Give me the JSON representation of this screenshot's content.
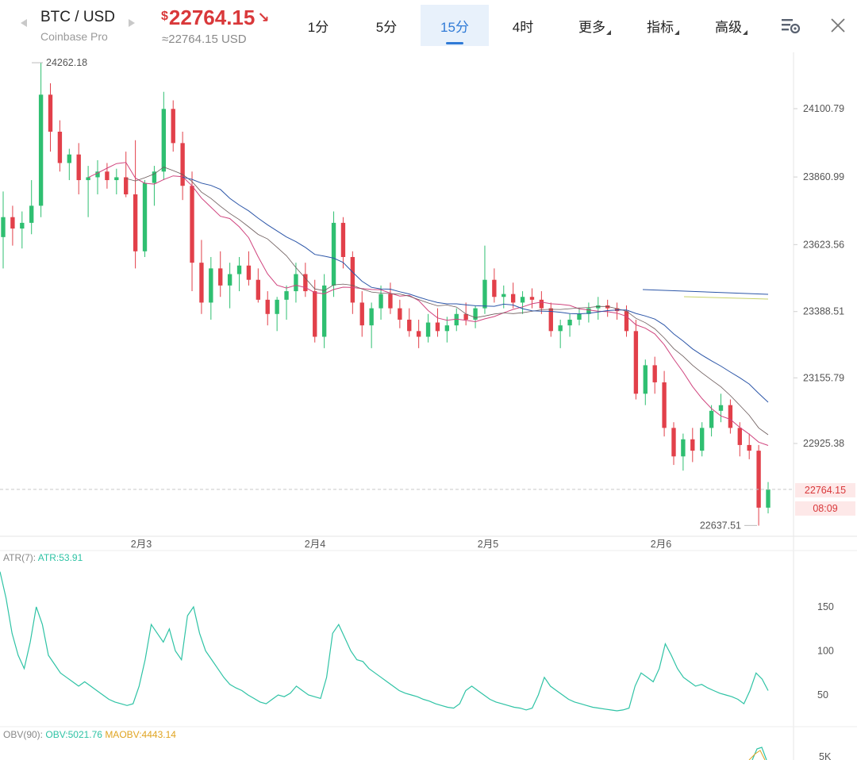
{
  "header": {
    "pair": "BTC / USD",
    "exchange": "Coinbase Pro",
    "price_currency": "$",
    "price": "22764.15",
    "price_trend_icon": "arrow-down-right-icon",
    "price_converted": "≈22764.15 USD",
    "tabs": [
      {
        "label": "1分",
        "active": false,
        "dropdown": false
      },
      {
        "label": "5分",
        "active": false,
        "dropdown": false
      },
      {
        "label": "15分",
        "active": true,
        "dropdown": false
      },
      {
        "label": "4时",
        "active": false,
        "dropdown": false
      },
      {
        "label": "更多",
        "active": false,
        "dropdown": true
      },
      {
        "label": "指标",
        "active": false,
        "dropdown": true
      },
      {
        "label": "高级",
        "active": false,
        "dropdown": true
      }
    ],
    "settings_icon": "chart-settings-icon",
    "close_icon": "close-icon"
  },
  "colors": {
    "up": "#2fbf71",
    "down": "#e2404a",
    "accent": "#2f7ad6",
    "price_red": "#d9383a",
    "ma_pink": "#d0447e",
    "ma_blue": "#2c56a8",
    "ma_dark": "#6b5a5a",
    "ma_yellow": "#c8d36a",
    "indicator_teal": "#2fc3a5",
    "indicator_orange": "#e0a421"
  },
  "main_chart": {
    "y_axis_labels": [
      "24100.79",
      "23860.99",
      "23623.56",
      "23388.51",
      "23155.79",
      "22925.38"
    ],
    "x_axis_labels": [
      "2月3",
      "2月4",
      "2月5",
      "2月6"
    ],
    "high_label": "24262.18",
    "low_label": "22637.51",
    "current_price_tag": "22764.15",
    "countdown_tag": "08:09",
    "candles": [
      [
        23650,
        23810,
        23540,
        23720
      ],
      [
        23720,
        23760,
        23620,
        23680
      ],
      [
        23680,
        23740,
        23610,
        23700
      ],
      [
        23700,
        23850,
        23660,
        23760
      ],
      [
        23760,
        24262,
        23720,
        24150
      ],
      [
        24150,
        24190,
        23950,
        24020
      ],
      [
        24020,
        24060,
        23880,
        23910
      ],
      [
        23910,
        23960,
        23850,
        23940
      ],
      [
        23940,
        23980,
        23800,
        23850
      ],
      [
        23850,
        23900,
        23720,
        23860
      ],
      [
        23860,
        23920,
        23800,
        23880
      ],
      [
        23880,
        23910,
        23820,
        23850
      ],
      [
        23850,
        23890,
        23800,
        23860
      ],
      [
        23860,
        23950,
        23790,
        23800
      ],
      [
        23800,
        23990,
        23540,
        23600
      ],
      [
        23600,
        23850,
        23580,
        23840
      ],
      [
        23840,
        23900,
        23760,
        23880
      ],
      [
        23880,
        24160,
        23850,
        24100
      ],
      [
        24100,
        24130,
        23950,
        23980
      ],
      [
        23980,
        24020,
        23780,
        23830
      ],
      [
        23830,
        23880,
        23460,
        23560
      ],
      [
        23560,
        23640,
        23380,
        23420
      ],
      [
        23420,
        23580,
        23360,
        23540
      ],
      [
        23540,
        23600,
        23440,
        23480
      ],
      [
        23480,
        23560,
        23400,
        23520
      ],
      [
        23520,
        23580,
        23460,
        23550
      ],
      [
        23550,
        23600,
        23480,
        23500
      ],
      [
        23500,
        23540,
        23420,
        23430
      ],
      [
        23430,
        23460,
        23340,
        23380
      ],
      [
        23380,
        23440,
        23320,
        23430
      ],
      [
        23430,
        23480,
        23360,
        23460
      ],
      [
        23460,
        23560,
        23420,
        23520
      ],
      [
        23520,
        23560,
        23440,
        23460
      ],
      [
        23460,
        23500,
        23280,
        23300
      ],
      [
        23300,
        23520,
        23260,
        23480
      ],
      [
        23480,
        23740,
        23440,
        23700
      ],
      [
        23700,
        23720,
        23540,
        23580
      ],
      [
        23580,
        23600,
        23380,
        23420
      ],
      [
        23420,
        23460,
        23300,
        23340
      ],
      [
        23340,
        23420,
        23260,
        23400
      ],
      [
        23400,
        23480,
        23360,
        23450
      ],
      [
        23450,
        23490,
        23380,
        23400
      ],
      [
        23400,
        23430,
        23330,
        23360
      ],
      [
        23360,
        23400,
        23300,
        23320
      ],
      [
        23320,
        23360,
        23260,
        23300
      ],
      [
        23300,
        23380,
        23280,
        23350
      ],
      [
        23350,
        23400,
        23300,
        23320
      ],
      [
        23320,
        23370,
        23280,
        23340
      ],
      [
        23340,
        23400,
        23320,
        23380
      ],
      [
        23380,
        23420,
        23340,
        23360
      ],
      [
        23360,
        23410,
        23330,
        23400
      ],
      [
        23400,
        23620,
        23380,
        23500
      ],
      [
        23500,
        23540,
        23420,
        23440
      ],
      [
        23440,
        23480,
        23400,
        23450
      ],
      [
        23450,
        23490,
        23400,
        23420
      ],
      [
        23420,
        23460,
        23380,
        23440
      ],
      [
        23440,
        23470,
        23400,
        23430
      ],
      [
        23430,
        23460,
        23380,
        23400
      ],
      [
        23400,
        23420,
        23300,
        23320
      ],
      [
        23320,
        23360,
        23260,
        23340
      ],
      [
        23340,
        23380,
        23300,
        23360
      ],
      [
        23360,
        23400,
        23340,
        23380
      ],
      [
        23380,
        23420,
        23350,
        23400
      ],
      [
        23400,
        23440,
        23360,
        23410
      ],
      [
        23410,
        23430,
        23370,
        23400
      ],
      [
        23400,
        23420,
        23360,
        23390
      ],
      [
        23390,
        23410,
        23300,
        23320
      ],
      [
        23320,
        23360,
        23080,
        23100
      ],
      [
        23100,
        23220,
        23060,
        23200
      ],
      [
        23200,
        23230,
        23100,
        23140
      ],
      [
        23140,
        23180,
        22950,
        22980
      ],
      [
        22980,
        23000,
        22850,
        22880
      ],
      [
        22880,
        22960,
        22830,
        22940
      ],
      [
        22940,
        22980,
        22860,
        22900
      ],
      [
        22900,
        23000,
        22880,
        22980
      ],
      [
        22980,
        23060,
        22950,
        23040
      ],
      [
        23040,
        23100,
        23000,
        23060
      ],
      [
        23060,
        23080,
        22960,
        22980
      ],
      [
        22980,
        23000,
        22880,
        22920
      ],
      [
        22920,
        22960,
        22870,
        22900
      ],
      [
        22900,
        22920,
        22637,
        22700
      ],
      [
        22700,
        22790,
        22680,
        22764
      ]
    ]
  },
  "atr_panel": {
    "label": "ATR(7):",
    "value_label": "ATR:53.91",
    "y_axis_labels": [
      "150",
      "100",
      "50"
    ],
    "series": [
      190,
      160,
      120,
      95,
      80,
      110,
      150,
      130,
      95,
      85,
      75,
      70,
      65,
      60,
      65,
      60,
      55,
      50,
      45,
      42,
      40,
      38,
      40,
      60,
      90,
      130,
      120,
      110,
      125,
      100,
      90,
      140,
      150,
      120,
      100,
      90,
      80,
      70,
      62,
      58,
      55,
      50,
      46,
      42,
      40,
      45,
      50,
      48,
      52,
      60,
      55,
      50,
      48,
      46,
      70,
      120,
      130,
      115,
      100,
      90,
      88,
      80,
      75,
      70,
      65,
      60,
      55,
      52,
      50,
      48,
      45,
      43,
      40,
      38,
      36,
      35,
      40,
      55,
      60,
      55,
      50,
      45,
      42,
      40,
      38,
      36,
      35,
      33,
      35,
      50,
      70,
      60,
      55,
      50,
      45,
      42,
      40,
      38,
      36,
      35,
      34,
      33,
      32,
      33,
      35,
      60,
      75,
      70,
      65,
      80,
      108,
      95,
      80,
      70,
      65,
      60,
      62,
      58,
      55,
      52,
      50,
      48,
      45,
      40,
      55,
      75,
      68,
      55
    ]
  },
  "obv_panel": {
    "label": "OBV(90):",
    "obv_label": "OBV:5021.76",
    "maobv_label": "MAOBV:4443.14",
    "y_axis_label": "5K"
  }
}
